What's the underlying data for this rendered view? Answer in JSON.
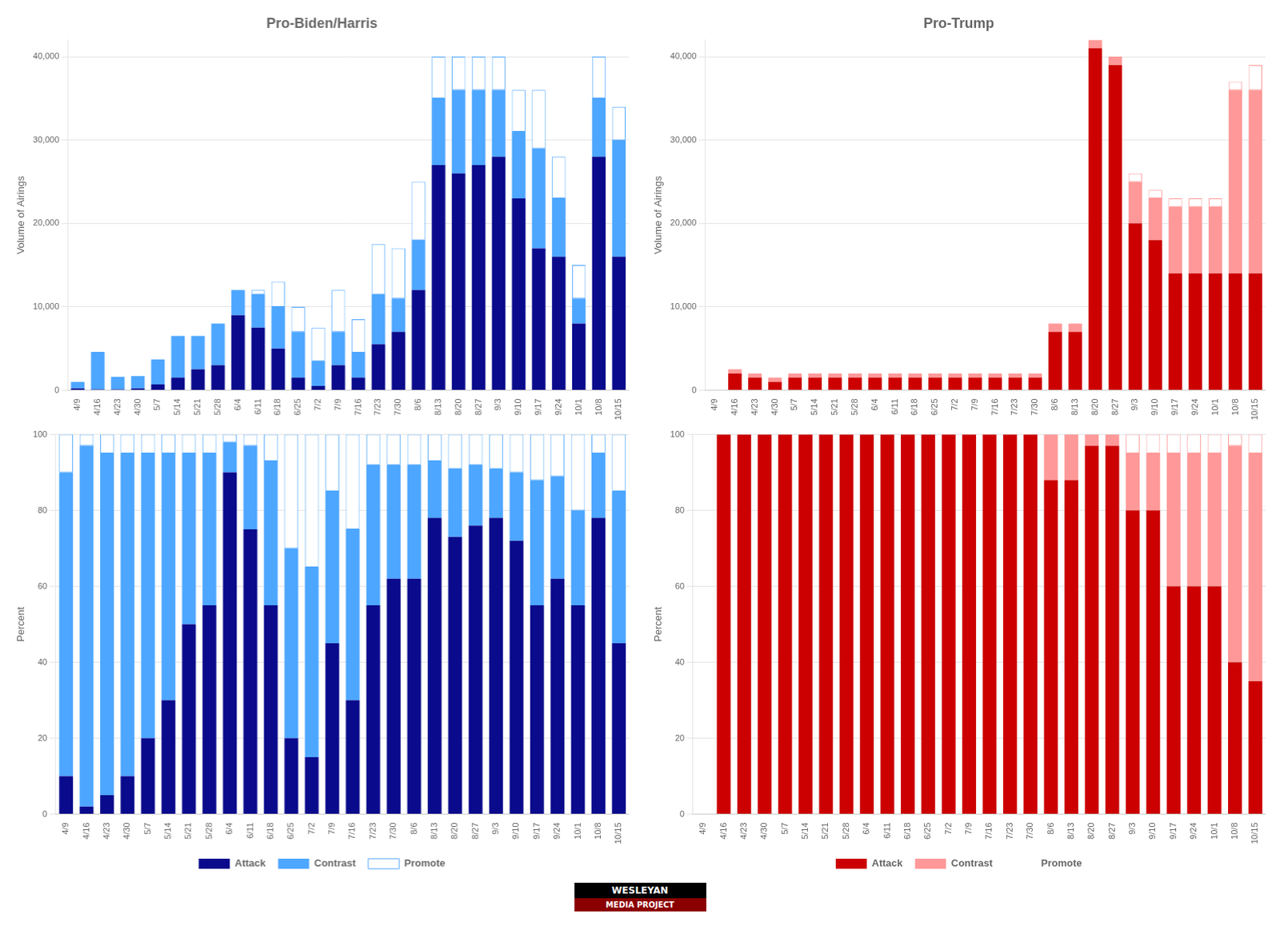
{
  "chart_data": [
    {
      "type": "bar",
      "stacked": true,
      "title": "Pro-Biden/Harris",
      "ylabel": "Volume of Airings",
      "categories": [
        "4/9",
        "4/16",
        "4/23",
        "4/30",
        "5/7",
        "5/14",
        "5/21",
        "5/28",
        "6/4",
        "6/11",
        "6/18",
        "6/25",
        "7/2",
        "7/9",
        "7/16",
        "7/23",
        "7/30",
        "8/6",
        "8/13",
        "8/20",
        "8/27",
        "9/3",
        "9/10",
        "9/17",
        "9/24",
        "10/1",
        "10/8",
        "10/15"
      ],
      "series": [
        {
          "name": "Attack",
          "color": "#0a0a8c",
          "values": [
            200,
            100,
            100,
            200,
            700,
            1500,
            2500,
            3000,
            9000,
            7500,
            5000,
            1500,
            500,
            3000,
            1500,
            5500,
            7000,
            12000,
            27000,
            26000,
            27000,
            28000,
            23000,
            17000,
            16000,
            8000,
            28000,
            16000
          ]
        },
        {
          "name": "Contrast",
          "color": "#4da6ff",
          "values": [
            800,
            4500,
            1500,
            1500,
            3000,
            5000,
            4000,
            5000,
            3000,
            4000,
            5000,
            5500,
            3000,
            4000,
            3000,
            6000,
            4000,
            6000,
            8000,
            10000,
            9000,
            8000,
            8000,
            12000,
            7000,
            3000,
            7000,
            14000
          ]
        },
        {
          "name": "Promote",
          "color": "#ffffff",
          "values": [
            0,
            0,
            0,
            0,
            0,
            0,
            0,
            0,
            0,
            500,
            3000,
            3000,
            4000,
            5000,
            4000,
            6000,
            6000,
            7000,
            5000,
            4000,
            4000,
            4000,
            5000,
            7000,
            5000,
            4000,
            5000,
            4000
          ]
        }
      ],
      "ylim": [
        0,
        42000
      ],
      "yticks": [
        0,
        {
          "value": 10000,
          "label": "10,000"
        },
        {
          "value": 20000,
          "label": "20,000"
        },
        {
          "value": 30000,
          "label": "30,000"
        },
        {
          "value": 40000,
          "label": "40,000"
        }
      ],
      "grid": true,
      "legend": false
    },
    {
      "type": "bar",
      "stacked": true,
      "title": "Pro-Trump",
      "ylabel": "Volume of Airings",
      "categories": [
        "4/9",
        "4/16",
        "4/23",
        "4/30",
        "5/7",
        "5/14",
        "5/21",
        "5/28",
        "6/4",
        "6/11",
        "6/18",
        "6/25",
        "7/2",
        "7/9",
        "7/16",
        "7/23",
        "7/30",
        "8/6",
        "8/13",
        "8/20",
        "8/27",
        "9/3",
        "9/10",
        "9/17",
        "9/24",
        "10/1",
        "10/8",
        "10/15"
      ],
      "series": [
        {
          "name": "Attack",
          "color": "#cc0000",
          "values": [
            0,
            2000,
            1500,
            1000,
            1500,
            1500,
            1500,
            1500,
            1500,
            1500,
            1500,
            1500,
            1500,
            1500,
            1500,
            1500,
            1500,
            7000,
            7000,
            41000,
            39000,
            20000,
            18000,
            14000,
            14000,
            14000,
            14000,
            14000
          ]
        },
        {
          "name": "Contrast",
          "color": "#ff9999",
          "values": [
            0,
            500,
            500,
            500,
            500,
            500,
            500,
            500,
            500,
            500,
            500,
            500,
            500,
            500,
            500,
            500,
            500,
            1000,
            1000,
            1000,
            1000,
            5000,
            5000,
            8000,
            8000,
            8000,
            22000,
            22000
          ]
        },
        {
          "name": "Promote",
          "color": "#ffffff",
          "values": [
            0,
            0,
            0,
            0,
            0,
            0,
            0,
            0,
            0,
            0,
            0,
            0,
            0,
            0,
            0,
            0,
            0,
            0,
            0,
            0,
            0,
            1000,
            1000,
            1000,
            1000,
            1000,
            1000,
            3000
          ]
        }
      ],
      "ylim": [
        0,
        42000
      ],
      "yticks": [
        0,
        {
          "value": 10000,
          "label": "10,000"
        },
        {
          "value": 20000,
          "label": "20,000"
        },
        {
          "value": 30000,
          "label": "30,000"
        },
        {
          "value": 40000,
          "label": "40,000"
        }
      ],
      "grid": true,
      "legend": false
    },
    {
      "type": "bar",
      "stacked": true,
      "ylabel": "Percent",
      "categories": [
        "4/9",
        "4/16",
        "4/23",
        "4/30",
        "5/7",
        "5/14",
        "5/21",
        "5/28",
        "6/4",
        "6/11",
        "6/18",
        "6/25",
        "7/2",
        "7/9",
        "7/16",
        "7/23",
        "7/30",
        "8/6",
        "8/13",
        "8/20",
        "8/27",
        "9/3",
        "9/10",
        "9/17",
        "9/24",
        "10/1",
        "10/8",
        "10/15"
      ],
      "series": [
        {
          "name": "Attack",
          "color": "#0a0a8c",
          "values": [
            10,
            2,
            5,
            10,
            20,
            30,
            50,
            55,
            90,
            75,
            55,
            20,
            15,
            45,
            30,
            55,
            62,
            62,
            78,
            73,
            76,
            78,
            72,
            55,
            62,
            55,
            78,
            45
          ]
        },
        {
          "name": "Contrast",
          "color": "#4da6ff",
          "values": [
            80,
            95,
            90,
            85,
            75,
            65,
            45,
            40,
            8,
            22,
            38,
            50,
            50,
            40,
            45,
            37,
            30,
            30,
            15,
            18,
            16,
            13,
            18,
            33,
            27,
            25,
            17,
            40
          ]
        },
        {
          "name": "Promote",
          "color": "#ffffff",
          "values": [
            10,
            3,
            5,
            5,
            5,
            5,
            5,
            5,
            2,
            3,
            7,
            30,
            35,
            15,
            25,
            8,
            8,
            8,
            7,
            9,
            8,
            9,
            10,
            12,
            11,
            20,
            5,
            15
          ]
        }
      ],
      "ylim": [
        0,
        100
      ],
      "yticks": [
        0,
        20,
        40,
        60,
        80,
        100
      ],
      "grid": true,
      "legend": "bottom"
    },
    {
      "type": "bar",
      "stacked": true,
      "ylabel": "Percent",
      "categories": [
        "4/9",
        "4/16",
        "4/23",
        "4/30",
        "5/7",
        "5/14",
        "5/21",
        "5/28",
        "6/4",
        "6/11",
        "6/18",
        "6/25",
        "7/2",
        "7/9",
        "7/16",
        "7/23",
        "7/30",
        "8/6",
        "8/13",
        "8/20",
        "8/27",
        "9/3",
        "9/10",
        "9/17",
        "9/24",
        "10/1",
        "10/8",
        "10/15"
      ],
      "series": [
        {
          "name": "Attack",
          "color": "#cc0000",
          "values": [
            0,
            100,
            100,
            100,
            100,
            100,
            100,
            100,
            100,
            100,
            100,
            100,
            100,
            100,
            100,
            100,
            100,
            88,
            88,
            97,
            97,
            80,
            80,
            60,
            60,
            60,
            40,
            35
          ]
        },
        {
          "name": "Contrast",
          "color": "#ff9999",
          "values": [
            0,
            0,
            0,
            0,
            0,
            0,
            0,
            0,
            0,
            0,
            0,
            0,
            0,
            0,
            0,
            0,
            0,
            12,
            12,
            3,
            3,
            15,
            15,
            35,
            35,
            35,
            57,
            60
          ]
        },
        {
          "name": "Promote",
          "color": "#ffffff",
          "values": [
            0,
            0,
            0,
            0,
            0,
            0,
            0,
            0,
            0,
            0,
            0,
            0,
            0,
            0,
            0,
            0,
            0,
            0,
            0,
            0,
            0,
            5,
            5,
            5,
            5,
            5,
            3,
            5
          ]
        }
      ],
      "ylim": [
        0,
        100
      ],
      "yticks": [
        0,
        20,
        40,
        60,
        80,
        100
      ],
      "grid": true,
      "legend": "bottom"
    }
  ],
  "annotations": [
    "WESLEYAN",
    "MEDIA PROJECT"
  ]
}
